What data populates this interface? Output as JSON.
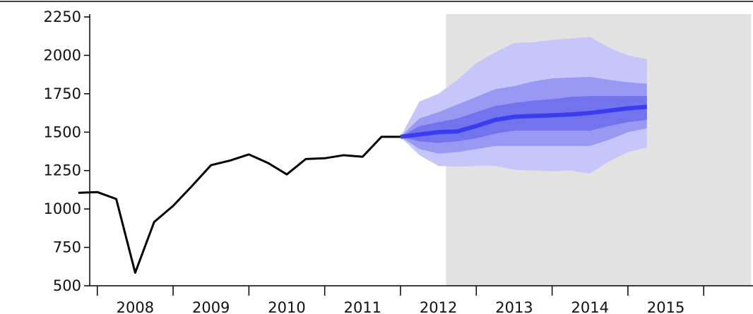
{
  "chart_data": {
    "type": "line",
    "title": "",
    "xlabel": "",
    "ylabel": "",
    "ylim": [
      500,
      2250
    ],
    "y_ticks": [
      500,
      750,
      1000,
      1250,
      1500,
      1750,
      2000,
      2250
    ],
    "x_tick_labels": [
      "2008",
      "2009",
      "2010",
      "2011",
      "2012",
      "2013",
      "2014",
      "2015"
    ],
    "x_range": [
      2007.15,
      2015.9
    ],
    "grid": false,
    "legend": "none",
    "forecast_shading_start": 2011.85,
    "colors": {
      "history_line": "#000000",
      "forecast_region": "#e2e2e2",
      "band_outer": "#c6c6fa",
      "band_middle": "#9999f3",
      "band_inner": "#7373ee",
      "median": "#3b3bf0"
    },
    "history": {
      "x": [
        2007.0,
        2007.25,
        2007.5,
        2007.75,
        2008.0,
        2008.25,
        2008.5,
        2008.75,
        2009.0,
        2009.25,
        2009.5,
        2009.75,
        2010.0,
        2010.25,
        2010.5,
        2010.75,
        2011.0,
        2011.25
      ],
      "y": [
        1105,
        1110,
        1065,
        585,
        915,
        1020,
        1150,
        1285,
        1315,
        1355,
        1300,
        1225,
        1325,
        1330,
        1350,
        1340,
        1470,
        1470
      ]
    },
    "forecast": {
      "x": [
        2011.25,
        2011.5,
        2011.75,
        2012.0,
        2012.25,
        2012.5,
        2012.75,
        2013.0,
        2013.25,
        2013.5,
        2013.75,
        2014.0,
        2014.25,
        2014.5
      ],
      "median": [
        1470,
        1485,
        1500,
        1505,
        1540,
        1580,
        1600,
        1605,
        1610,
        1615,
        1625,
        1640,
        1655,
        1665
      ],
      "bands": [
        {
          "level": "outer",
          "lower": [
            1470,
            1350,
            1280,
            1275,
            1280,
            1280,
            1255,
            1250,
            1245,
            1250,
            1230,
            1310,
            1370,
            1400
          ],
          "upper": [
            1470,
            1700,
            1750,
            1840,
            1950,
            2020,
            2080,
            2085,
            2100,
            2110,
            2120,
            2050,
            2000,
            1975
          ]
        },
        {
          "level": "middle",
          "lower": [
            1470,
            1390,
            1360,
            1370,
            1390,
            1410,
            1410,
            1410,
            1410,
            1410,
            1410,
            1450,
            1500,
            1525
          ]
        },
        {
          "level": "middle_upper",
          "upper": [
            1470,
            1590,
            1630,
            1680,
            1730,
            1780,
            1800,
            1830,
            1850,
            1855,
            1860,
            1840,
            1825,
            1815
          ]
        },
        {
          "level": "inner",
          "lower": [
            1470,
            1440,
            1430,
            1440,
            1460,
            1490,
            1510,
            1510,
            1510,
            1510,
            1510,
            1540,
            1565,
            1580
          ],
          "upper": [
            1470,
            1540,
            1565,
            1590,
            1630,
            1670,
            1690,
            1705,
            1715,
            1730,
            1735,
            1735,
            1735,
            1735
          ]
        }
      ]
    }
  }
}
